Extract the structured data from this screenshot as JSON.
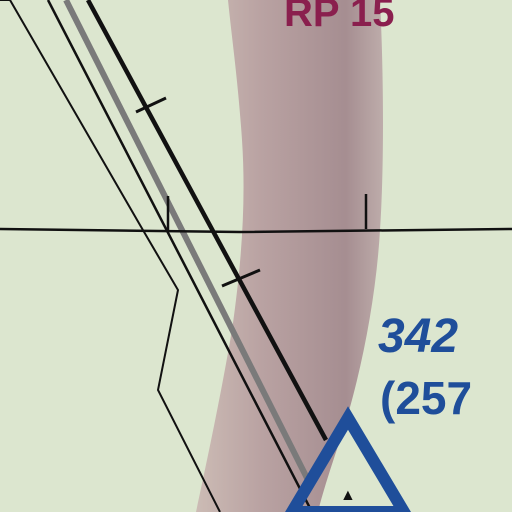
{
  "map": {
    "runway_label": "RP 15",
    "elevation_label": "342",
    "elevation_sub_label": "(257",
    "colors": {
      "land": "#dce6cf",
      "terrain_band": "#9b7a80",
      "road_black": "#111111",
      "road_gray": "#7a7a7a",
      "navaid_blue": "#1f4e9a",
      "label_maroon": "#8a1f4e"
    }
  }
}
